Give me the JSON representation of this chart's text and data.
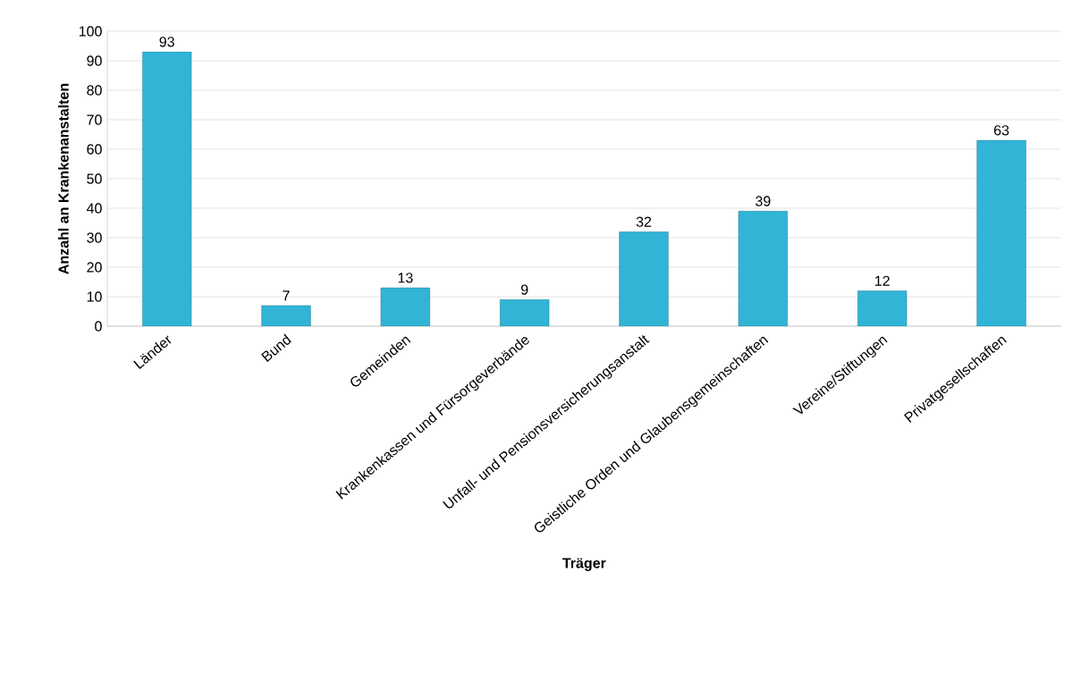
{
  "chart_data": {
    "type": "bar",
    "xlabel": "Träger",
    "ylabel": "Anzahl an Krankenanstalten",
    "categories": [
      "Länder",
      "Bund",
      "Gemeinden",
      "Krankenkassen und Fürsorgeverbände",
      "Unfall- und Pensionsversicherungsanstalt",
      "Geistliche Orden und Glaubensgemeinschaften",
      "Vereine/Stiftungen",
      "Privatgesellschaften"
    ],
    "values": [
      93,
      7,
      13,
      9,
      32,
      39,
      12,
      63
    ],
    "color": "#31b4d6",
    "ylim": [
      0,
      100
    ],
    "yticks": [
      0,
      10,
      20,
      30,
      40,
      50,
      60,
      70,
      80,
      90,
      100
    ],
    "grid": "y",
    "data_labels": true
  }
}
